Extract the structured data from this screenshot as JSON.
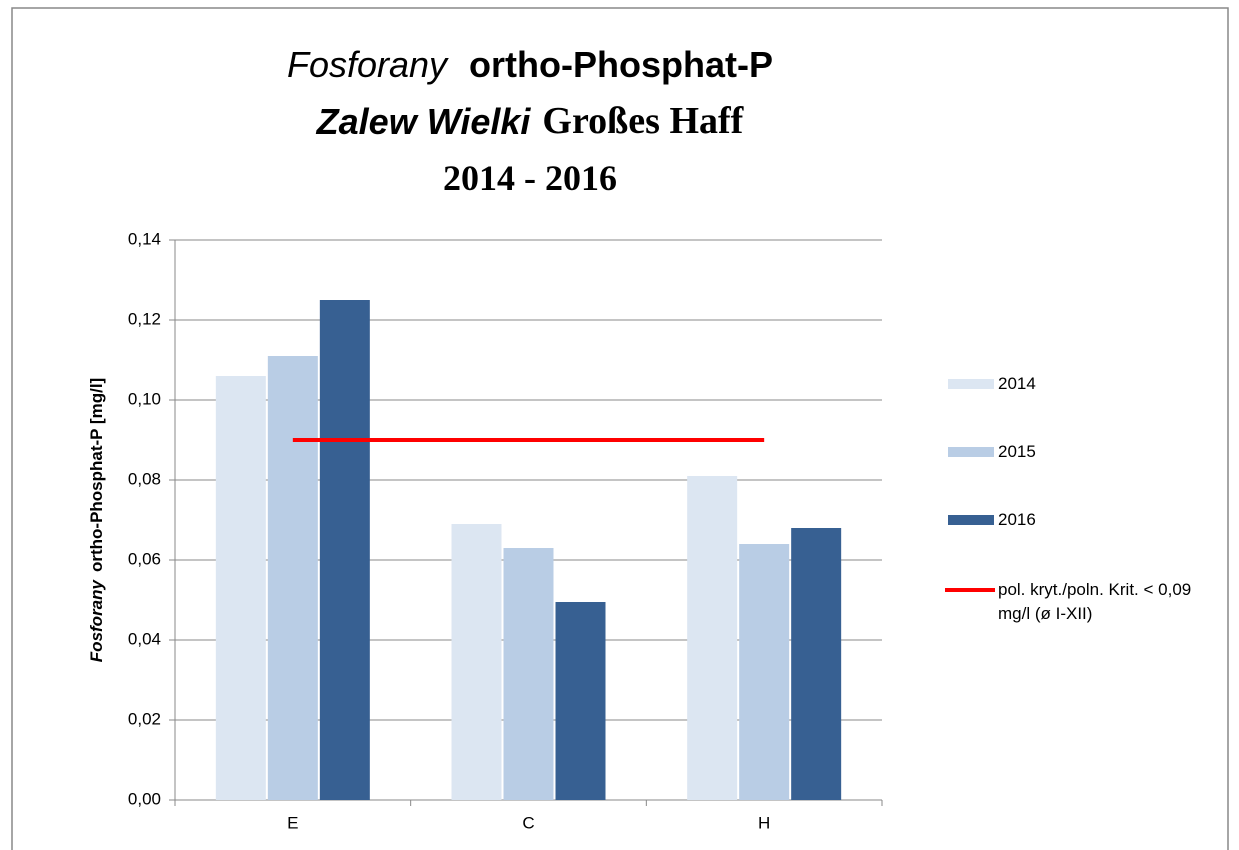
{
  "chart_data": {
    "type": "bar",
    "title": [
      [
        "Fosforany",
        "ortho-Phosphat-P"
      ],
      [
        "Zalew Wielki",
        "Großes Haff"
      ],
      [
        "2014 - 2016"
      ]
    ],
    "y_label": [
      "Fosforany",
      "ortho-Phosphat-P [mg/l]"
    ],
    "categories": [
      "E",
      "C",
      "H"
    ],
    "series": [
      {
        "name": "2014",
        "color": "#dce6f2",
        "values": [
          0.106,
          0.069,
          0.081
        ]
      },
      {
        "name": "2015",
        "color": "#b9cde5",
        "values": [
          0.111,
          0.063,
          0.064
        ]
      },
      {
        "name": "2016",
        "color": "#376092",
        "values": [
          0.125,
          0.0495,
          0.068
        ]
      },
      {
        "name": "pol. kryt./poln. Krit. < 0,09 mg/l (ø I-XII)",
        "color": "#ff0000",
        "type": "line",
        "values": [
          0.09,
          0.09,
          0.09
        ]
      }
    ],
    "ylim": [
      0,
      0.14
    ],
    "yticks": [
      {
        "value": 0,
        "label": "0,00"
      },
      {
        "value": 0.02,
        "label": "0,02"
      },
      {
        "value": 0.04,
        "label": "0,04"
      },
      {
        "value": 0.06,
        "label": "0,06"
      },
      {
        "value": 0.08,
        "label": "0,08"
      },
      {
        "value": 0.1,
        "label": "0,10"
      },
      {
        "value": 0.12,
        "label": "0,12"
      },
      {
        "value": 0.14,
        "label": "0,14"
      }
    ],
    "grid": true,
    "legend": "right"
  }
}
